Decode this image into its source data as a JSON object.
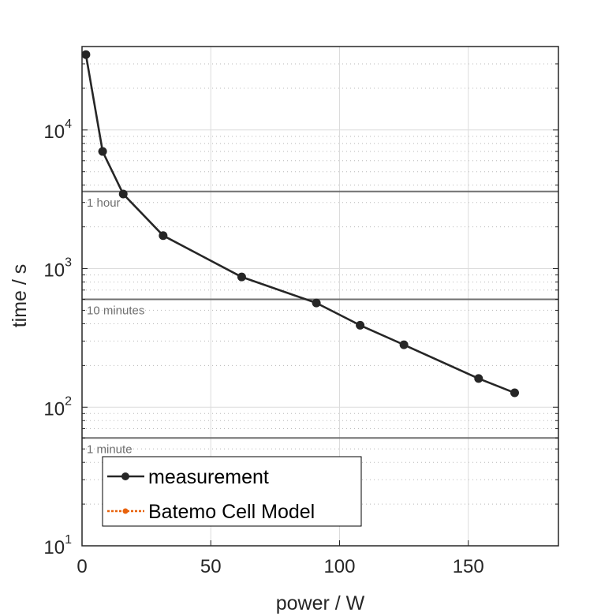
{
  "chart_data": {
    "type": "line",
    "title": "",
    "xlabel": "power / W",
    "ylabel": "time / s",
    "xlim": [
      0,
      185
    ],
    "ylim": [
      10,
      40000
    ],
    "yscale": "log",
    "grid": true,
    "legend_placement": "bottom-left",
    "x_ticks": [
      0,
      50,
      100,
      150
    ],
    "x_tick_labels": [
      "0",
      "50",
      "100",
      "150"
    ],
    "y_ticks": [
      10,
      100,
      1000,
      10000
    ],
    "y_tick_labels": [
      {
        "base": "10",
        "exp": "1"
      },
      {
        "base": "10",
        "exp": "2"
      },
      {
        "base": "10",
        "exp": "3"
      },
      {
        "base": "10",
        "exp": "4"
      }
    ],
    "series": [
      {
        "name": "measurement",
        "color": "#262626",
        "style": "solid",
        "marker": "circle",
        "x": [
          1.5,
          8,
          16,
          31.5,
          62,
          91,
          108,
          125,
          154,
          168
        ],
        "y": [
          35000,
          7000,
          3450,
          1730,
          870,
          565,
          390,
          282,
          161,
          127
        ]
      },
      {
        "name": "Batemo Cell Model",
        "color": "#e8620c",
        "style": "dotted",
        "marker": "circle",
        "x": [],
        "y": []
      }
    ],
    "reference_lines": [
      {
        "y": 3600,
        "label": "1 hour",
        "color": "#707070"
      },
      {
        "y": 600,
        "label": "10 minutes",
        "color": "#707070"
      },
      {
        "y": 60,
        "label": "1 minute",
        "color": "#707070"
      }
    ]
  }
}
